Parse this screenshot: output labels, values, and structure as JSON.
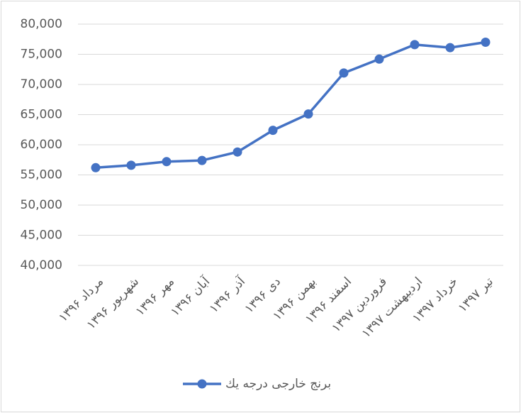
{
  "chart_data": {
    "type": "line",
    "categories": [
      "مرداد ۱۳۹۶",
      "شهریور ۱۳۹۶",
      "مهر ۱۳۹۶",
      "آبان ۱۳۹۶",
      "آذر ۱۳۹۶",
      "دی ۱۳۹۶",
      "بهمن ۱۳۹۶",
      "اسفند ۱۳۹۶",
      "فروردین ۱۳۹۷",
      "اردیبهشت ۱۳۹۷",
      "خرداد ۱۳۹۷",
      "تیر ۱۳۹۷"
    ],
    "series": [
      {
        "name": "برنج خارجی درجه يك",
        "color": "#4472c4",
        "values": [
          56200,
          56600,
          57200,
          57400,
          58800,
          62400,
          65100,
          71900,
          74200,
          76600,
          76100,
          77000
        ]
      }
    ],
    "ylim": [
      40000,
      80000
    ],
    "yticks": [
      {
        "value": 40000,
        "label": "40,000"
      },
      {
        "value": 45000,
        "label": "45,000"
      },
      {
        "value": 50000,
        "label": "50,000"
      },
      {
        "value": 55000,
        "label": "55,000"
      },
      {
        "value": 60000,
        "label": "60,000"
      },
      {
        "value": 65000,
        "label": "65,000"
      },
      {
        "value": 70000,
        "label": "70,000"
      },
      {
        "value": 75000,
        "label": "75,000"
      },
      {
        "value": 80000,
        "label": "80,000"
      }
    ],
    "grid": true,
    "legend": "bottom"
  }
}
